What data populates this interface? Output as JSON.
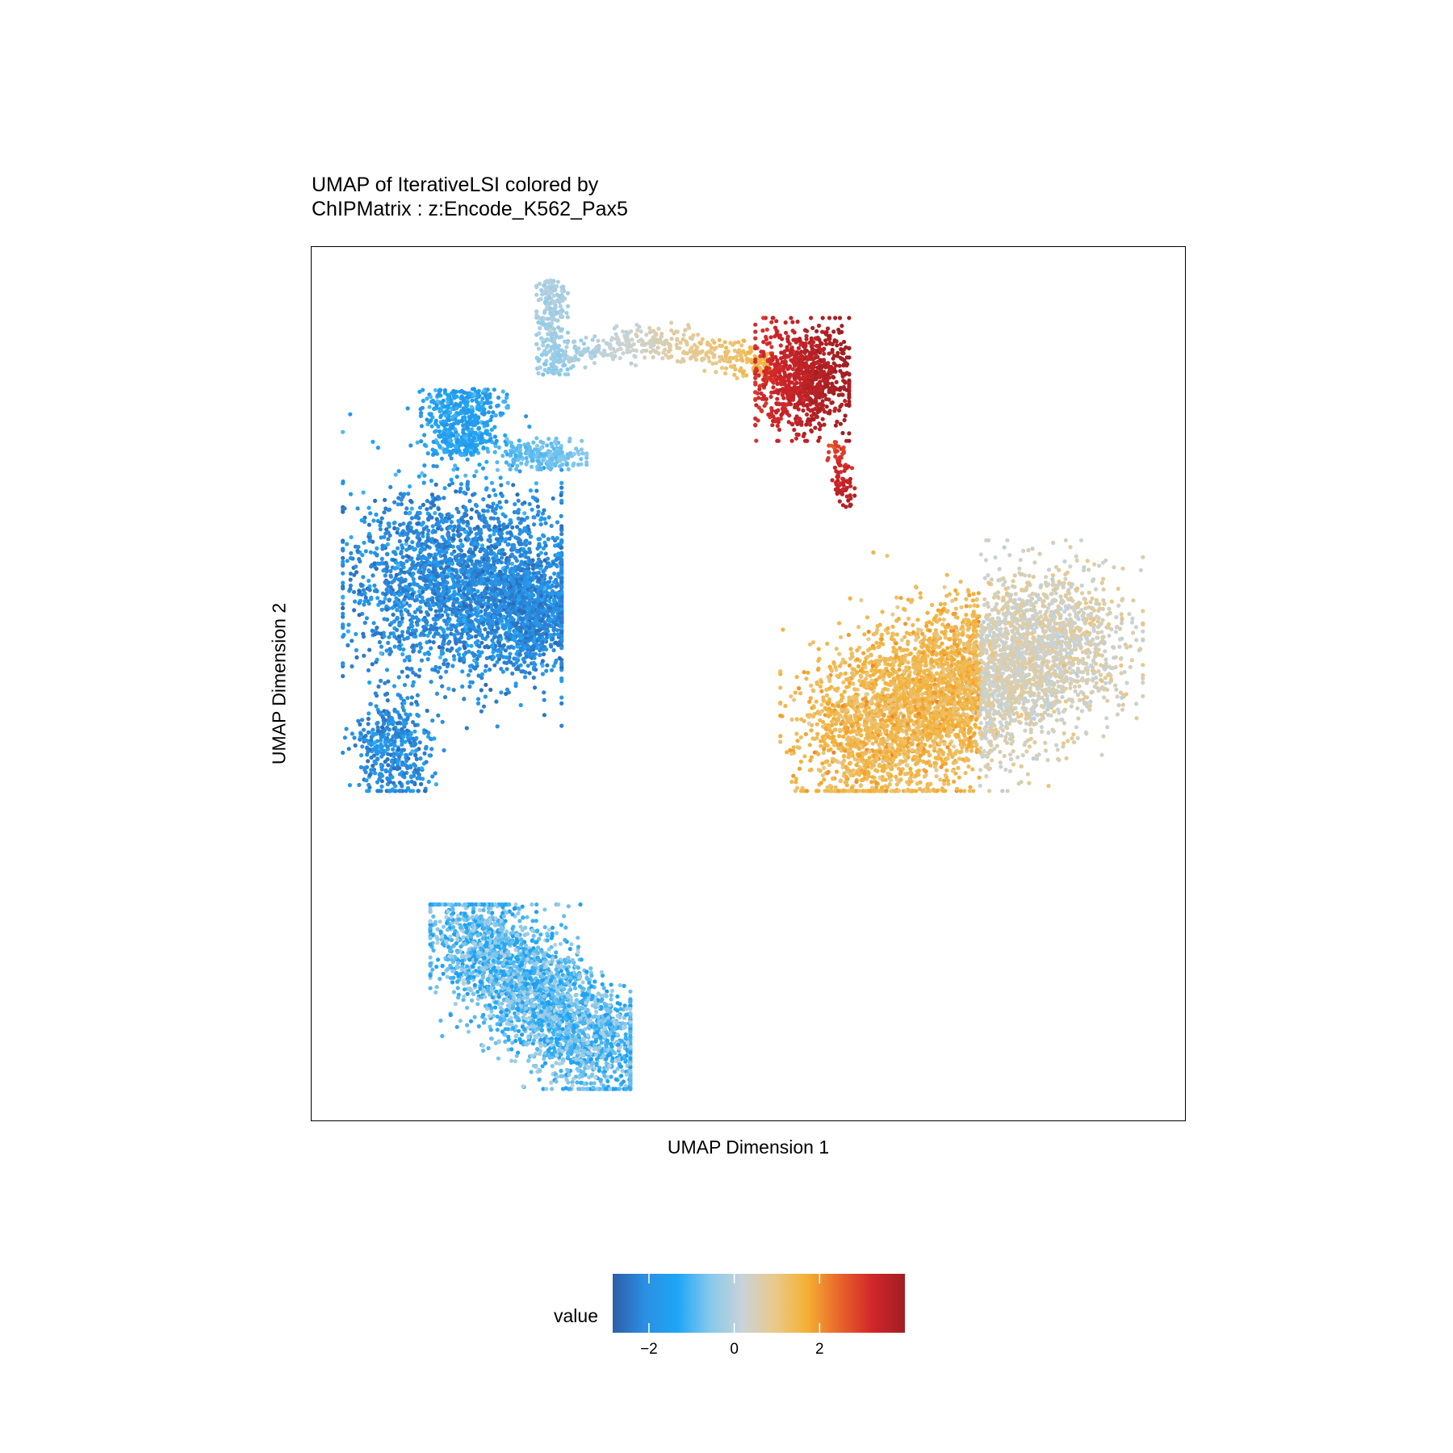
{
  "title_line1": "UMAP of IterativeLSI colored by",
  "title_line2": "ChIPMatrix : z:Encode_K562_Pax5",
  "chart_data": {
    "type": "scatter",
    "title": "UMAP of IterativeLSI colored by ChIPMatrix : z:Encode_K562_Pax5",
    "xlabel": "UMAP Dimension 1",
    "ylabel": "UMAP Dimension 2",
    "axis_ticks": "none",
    "grid": false,
    "color_scale": {
      "label": "value",
      "ticks": [
        -2,
        0,
        2
      ],
      "tick_labels": [
        "−2",
        "0",
        "2"
      ],
      "range": [
        -2.85,
        4.0
      ],
      "colors": [
        "#2c5ea8",
        "#2b8fe3",
        "#1ea6f5",
        "#86c9ec",
        "#c9d3d8",
        "#e9c98a",
        "#f4b032",
        "#e8642a",
        "#d1262a",
        "#a01e22"
      ]
    },
    "legend_position": "bottom",
    "clusters": [
      {
        "region": "upper-left branch tip",
        "x": [
          4.1,
          4.6
        ],
        "y": [
          7.3,
          9.3
        ],
        "value_range": [
          -0.4,
          -0.1
        ]
      },
      {
        "region": "upper arm toward right",
        "x": [
          4.4,
          7.9
        ],
        "y": [
          7.0,
          8.4
        ],
        "value_range": [
          -0.4,
          1.6
        ]
      },
      {
        "region": "upper right dense cluster",
        "x": [
          7.6,
          9.1
        ],
        "y": [
          5.9,
          8.5
        ],
        "value_range": [
          2.6,
          4.0
        ]
      },
      {
        "region": "thin connection",
        "x": [
          8.4,
          9.3
        ],
        "y": [
          4.5,
          5.9
        ],
        "value_range": [
          2.8,
          3.8
        ]
      },
      {
        "region": "left main arc",
        "x": [
          1.0,
          4.5
        ],
        "y": [
          -1.5,
          7.0
        ],
        "value_range": [
          -2.8,
          -1.0
        ]
      },
      {
        "region": "small side branch",
        "x": [
          3.3,
          4.9
        ],
        "y": [
          5.3,
          6.0
        ],
        "value_range": [
          -1.0,
          -0.6
        ]
      },
      {
        "region": "lower left lobe",
        "x": [
          2.4,
          5.6
        ],
        "y": [
          -7.8,
          -3.9
        ],
        "value_range": [
          -1.6,
          -0.1
        ]
      },
      {
        "region": "right large cluster",
        "x": [
          8.0,
          13.8
        ],
        "y": [
          -1.5,
          3.8
        ],
        "value_range": [
          0.2,
          1.9
        ]
      }
    ]
  }
}
